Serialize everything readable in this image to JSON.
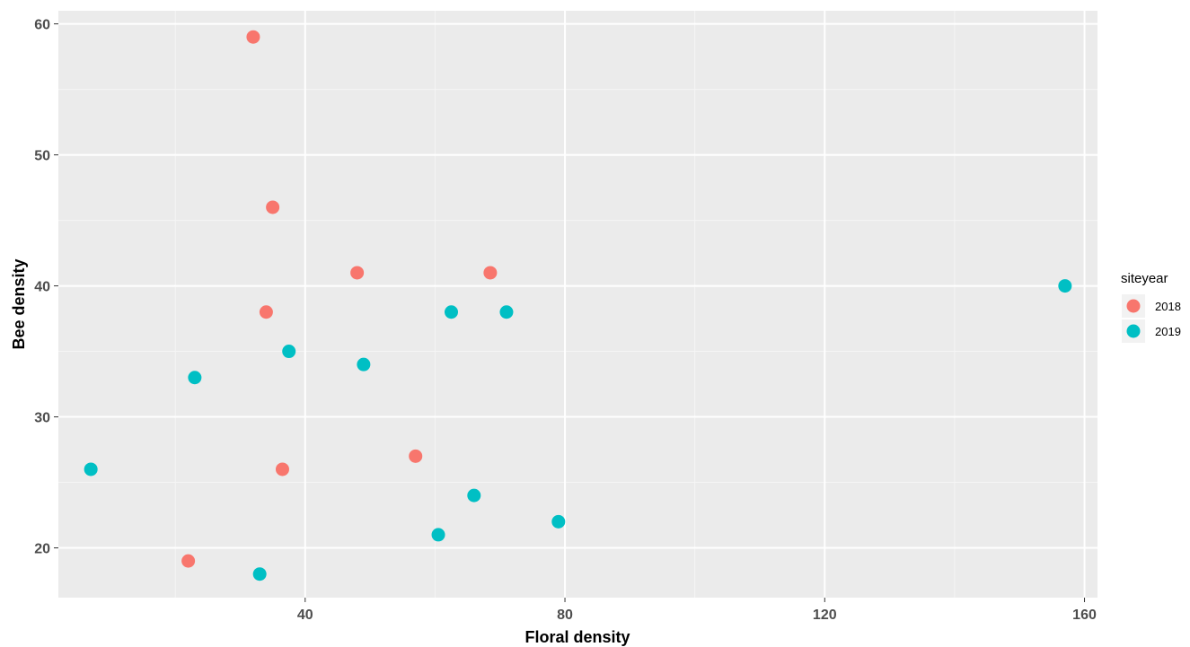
{
  "chart_data": {
    "type": "scatter",
    "xlabel": "Floral density",
    "ylabel": "Bee density",
    "xlim": [
      2,
      162
    ],
    "ylim": [
      16.2,
      61
    ],
    "x_ticks": [
      40,
      80,
      120,
      160
    ],
    "y_ticks": [
      20,
      30,
      40,
      50,
      60
    ],
    "grid": true,
    "legend": {
      "title": "siteyear",
      "position": "right"
    },
    "series": [
      {
        "name": "2018",
        "color": "#F8766D",
        "points": [
          {
            "x": 32.0,
            "y": 59
          },
          {
            "x": 35.0,
            "y": 46
          },
          {
            "x": 48.0,
            "y": 41
          },
          {
            "x": 68.5,
            "y": 41
          },
          {
            "x": 34.0,
            "y": 38
          },
          {
            "x": 57.0,
            "y": 27
          },
          {
            "x": 36.5,
            "y": 26
          },
          {
            "x": 22.0,
            "y": 19
          }
        ]
      },
      {
        "name": "2019",
        "color": "#00BFC4",
        "points": [
          {
            "x": 157.0,
            "y": 40
          },
          {
            "x": 62.5,
            "y": 38
          },
          {
            "x": 71.0,
            "y": 38
          },
          {
            "x": 37.5,
            "y": 35
          },
          {
            "x": 49.0,
            "y": 34
          },
          {
            "x": 23.0,
            "y": 33
          },
          {
            "x": 7.0,
            "y": 26
          },
          {
            "x": 66.0,
            "y": 24
          },
          {
            "x": 79.0,
            "y": 22
          },
          {
            "x": 60.5,
            "y": 21
          },
          {
            "x": 33.0,
            "y": 18
          }
        ]
      }
    ]
  }
}
